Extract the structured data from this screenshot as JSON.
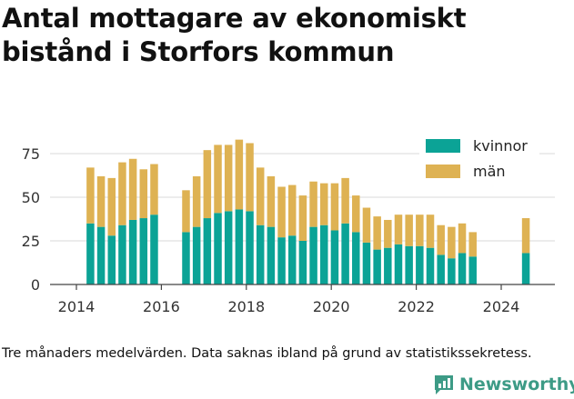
{
  "title": "Antal mottagare av ekonomiskt bistånd i Storfors kommun",
  "footnote": "Tre månaders medelvärden. Data saknas ibland på grund av statistikssekretess.",
  "brand": {
    "name": "Newsworthy",
    "color": "#3d9b86"
  },
  "chart_data": {
    "type": "bar",
    "stacked": true,
    "xlim": [
      2013.3,
      2025.5
    ],
    "ylim": [
      0,
      85
    ],
    "yticks": [
      0,
      25,
      50,
      75
    ],
    "xticks": [
      2014,
      2016,
      2018,
      2020,
      2022,
      2024
    ],
    "grid": "horizontal",
    "legend_position": "top-right",
    "x": [
      2014.33,
      2014.58,
      2014.83,
      2015.08,
      2015.33,
      2015.58,
      2015.83,
      2016.58,
      2016.83,
      2017.08,
      2017.33,
      2017.58,
      2017.83,
      2018.08,
      2018.33,
      2018.58,
      2018.83,
      2019.08,
      2019.33,
      2019.58,
      2019.83,
      2020.08,
      2020.33,
      2020.58,
      2020.83,
      2021.08,
      2021.33,
      2021.58,
      2021.83,
      2022.08,
      2022.33,
      2022.58,
      2022.83,
      2023.08,
      2023.33,
      2024.58
    ],
    "series": [
      {
        "name": "kvinnor",
        "color": "#0ba396",
        "values": [
          35,
          33,
          28,
          34,
          37,
          38,
          40,
          30,
          33,
          38,
          41,
          42,
          43,
          42,
          34,
          33,
          27,
          28,
          25,
          33,
          34,
          31,
          35,
          30,
          24,
          20,
          21,
          23,
          22,
          22,
          21,
          17,
          15,
          18,
          16,
          18
        ]
      },
      {
        "name": "män",
        "color": "#deb253",
        "values": [
          32,
          29,
          33,
          36,
          35,
          28,
          29,
          24,
          29,
          39,
          39,
          38,
          40,
          39,
          33,
          29,
          29,
          29,
          26,
          26,
          24,
          27,
          26,
          21,
          20,
          19,
          16,
          17,
          18,
          18,
          19,
          17,
          18,
          17,
          14,
          20
        ]
      }
    ]
  }
}
